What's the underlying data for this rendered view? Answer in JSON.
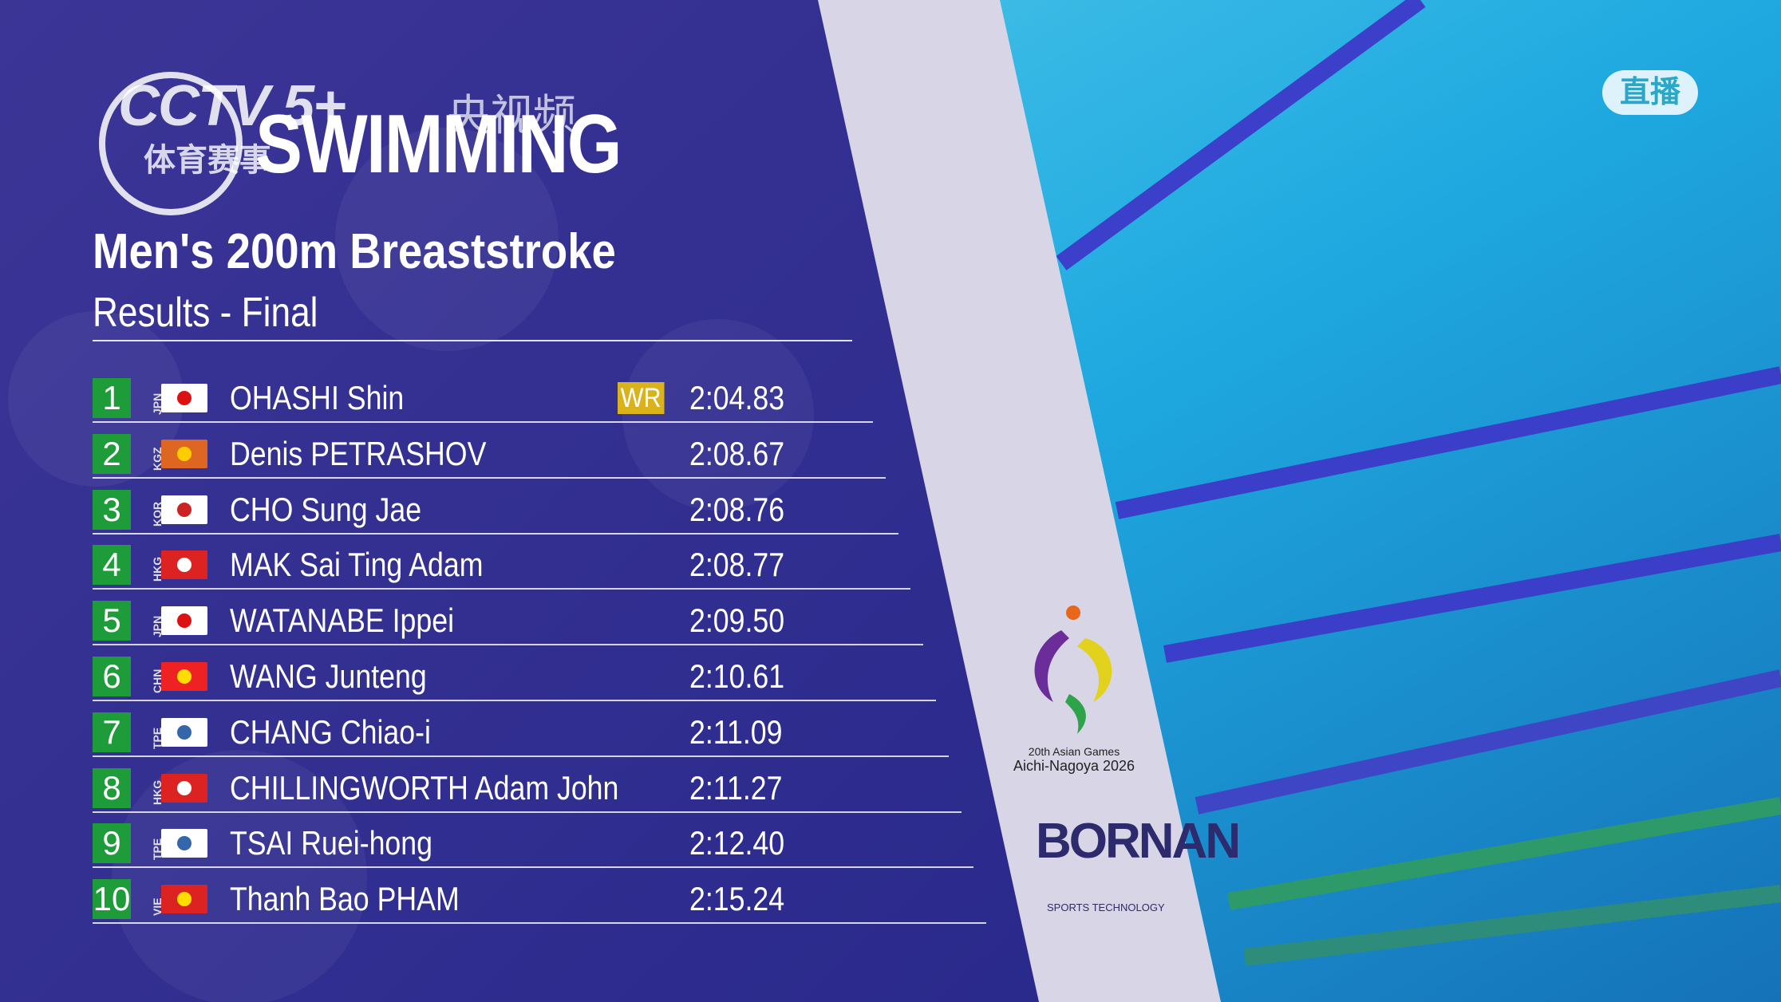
{
  "header": {
    "broadcaster": "CCTV 5+",
    "app": "央视频",
    "channel": "体育赛事",
    "sport": "SWIMMING",
    "title": "Men's 200m Breaststroke",
    "subtitle": "Results - Final"
  },
  "live": "直播",
  "results": [
    {
      "rank": "1",
      "country": "JPN",
      "name": "OHASHI Shin",
      "record": "WR",
      "time": "2:04.83"
    },
    {
      "rank": "2",
      "country": "KGZ",
      "name": "Denis PETRASHOV",
      "time": "2:08.67"
    },
    {
      "rank": "3",
      "country": "KOR",
      "name": "CHO Sung Jae",
      "time": "2:08.76"
    },
    {
      "rank": "4",
      "country": "HKG",
      "name": "MAK Sai Ting Adam",
      "time": "2:08.77"
    },
    {
      "rank": "5",
      "country": "JPN",
      "name": "WATANABE Ippei",
      "time": "2:09.50"
    },
    {
      "rank": "6",
      "country": "CHN",
      "name": "WANG Junteng",
      "time": "2:10.61"
    },
    {
      "rank": "7",
      "country": "TPE",
      "name": "CHANG Chiao-i",
      "time": "2:11.09"
    },
    {
      "rank": "8",
      "country": "HKG",
      "name": "CHILLINGWORTH Adam John",
      "time": "2:11.27"
    },
    {
      "rank": "9",
      "country": "TPE",
      "name": "TSAI Ruei-hong",
      "time": "2:12.40"
    },
    {
      "rank": "10",
      "country": "VIE",
      "name": "Thanh Bao PHAM",
      "time": "2:15.24"
    }
  ],
  "sponsor": {
    "games_edition": "20th Asian Games",
    "games_host": "Aichi-Nagoya 2026",
    "timing": "BORNAN",
    "timing_tagline": "SPORTS TECHNOLOGY"
  }
}
